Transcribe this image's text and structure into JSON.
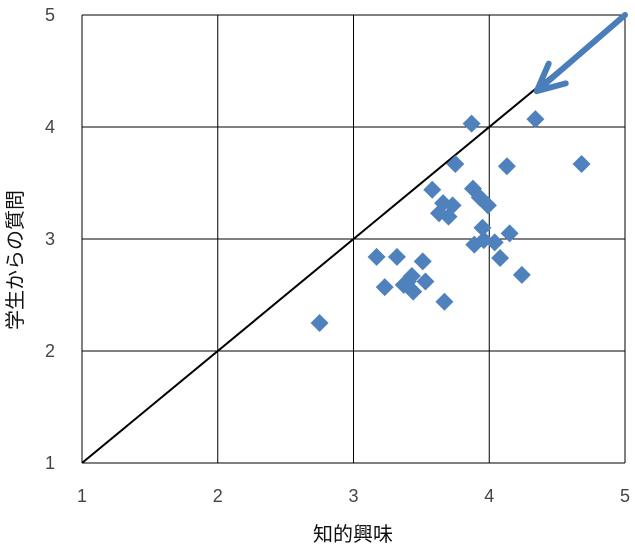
{
  "chart_data": {
    "type": "scatter",
    "xlabel": "知的興味",
    "ylabel": "学生からの質問",
    "xlim": [
      1,
      5
    ],
    "ylim": [
      1,
      5
    ],
    "x_ticks": [
      "1",
      "2",
      "3",
      "4",
      "5"
    ],
    "y_ticks": [
      "1",
      "2",
      "3",
      "4",
      "5"
    ],
    "grid": true,
    "marker": "diamond",
    "marker_color": "#4f81bd",
    "diagonal_line": {
      "from": [
        1,
        1
      ],
      "to": [
        5,
        5
      ],
      "color": "#000000"
    },
    "arrow": {
      "from": [
        5,
        5
      ],
      "to": [
        4.35,
        4.32
      ],
      "color": "#4a7ebb"
    },
    "points": [
      [
        2.75,
        2.25
      ],
      [
        3.17,
        2.84
      ],
      [
        3.23,
        2.57
      ],
      [
        3.32,
        2.84
      ],
      [
        3.37,
        2.59
      ],
      [
        3.4,
        2.62
      ],
      [
        3.43,
        2.67
      ],
      [
        3.44,
        2.53
      ],
      [
        3.51,
        2.8
      ],
      [
        3.53,
        2.62
      ],
      [
        3.58,
        3.44
      ],
      [
        3.63,
        3.23
      ],
      [
        3.66,
        3.32
      ],
      [
        3.67,
        2.44
      ],
      [
        3.7,
        3.2
      ],
      [
        3.73,
        3.3
      ],
      [
        3.75,
        3.67
      ],
      [
        3.87,
        4.03
      ],
      [
        3.88,
        3.45
      ],
      [
        3.89,
        2.95
      ],
      [
        3.93,
        3.37
      ],
      [
        3.95,
        3.1
      ],
      [
        3.96,
        2.99
      ],
      [
        3.99,
        3.3
      ],
      [
        4.04,
        2.97
      ],
      [
        4.08,
        2.83
      ],
      [
        4.13,
        3.65
      ],
      [
        4.15,
        3.05
      ],
      [
        4.24,
        2.68
      ],
      [
        4.34,
        4.07
      ],
      [
        4.68,
        3.67
      ]
    ]
  }
}
